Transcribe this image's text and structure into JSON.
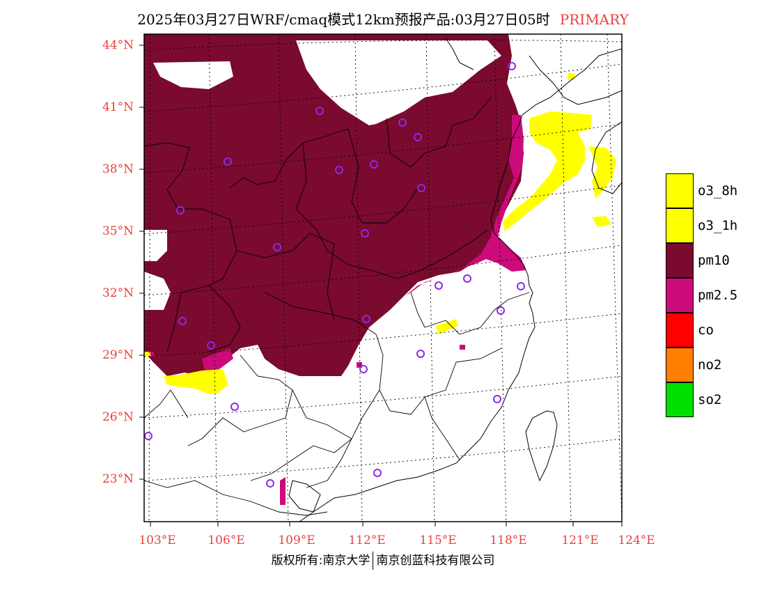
{
  "title": {
    "main": "2025年03月27日WRF/cmaq模式12km预报产品:03月27日05时",
    "tag": "PRIMARY"
  },
  "latitude_labels": [
    "44°N",
    "41°N",
    "38°N",
    "35°N",
    "32°N",
    "29°N",
    "26°N",
    "23°N"
  ],
  "longitude_labels": [
    "103°E",
    "106°E",
    "109°E",
    "112°E",
    "115°E",
    "118°E",
    "121°E",
    "124°E"
  ],
  "legend": [
    {
      "label": "o3_8h",
      "color": "#ffff00"
    },
    {
      "label": "o3_1h",
      "color": "#ffff00"
    },
    {
      "label": "pm10",
      "color": "#7a0a2e"
    },
    {
      "label": "pm2.5",
      "color": "#cc0a7a"
    },
    {
      "label": "co",
      "color": "#ff0000"
    },
    {
      "label": "no2",
      "color": "#ff7f00"
    },
    {
      "label": "so2",
      "color": "#00e000"
    }
  ],
  "copyright": {
    "left": "版权所有:南京大学",
    "right": "南京创蓝科技有限公司"
  },
  "colors": {
    "pm10": "#7a0a2e",
    "pm25": "#cc0a7a",
    "o3": "#ffff00",
    "site_marker": "#8a2be2",
    "axis_label": "#e8413c"
  },
  "station_marker": "circle"
}
